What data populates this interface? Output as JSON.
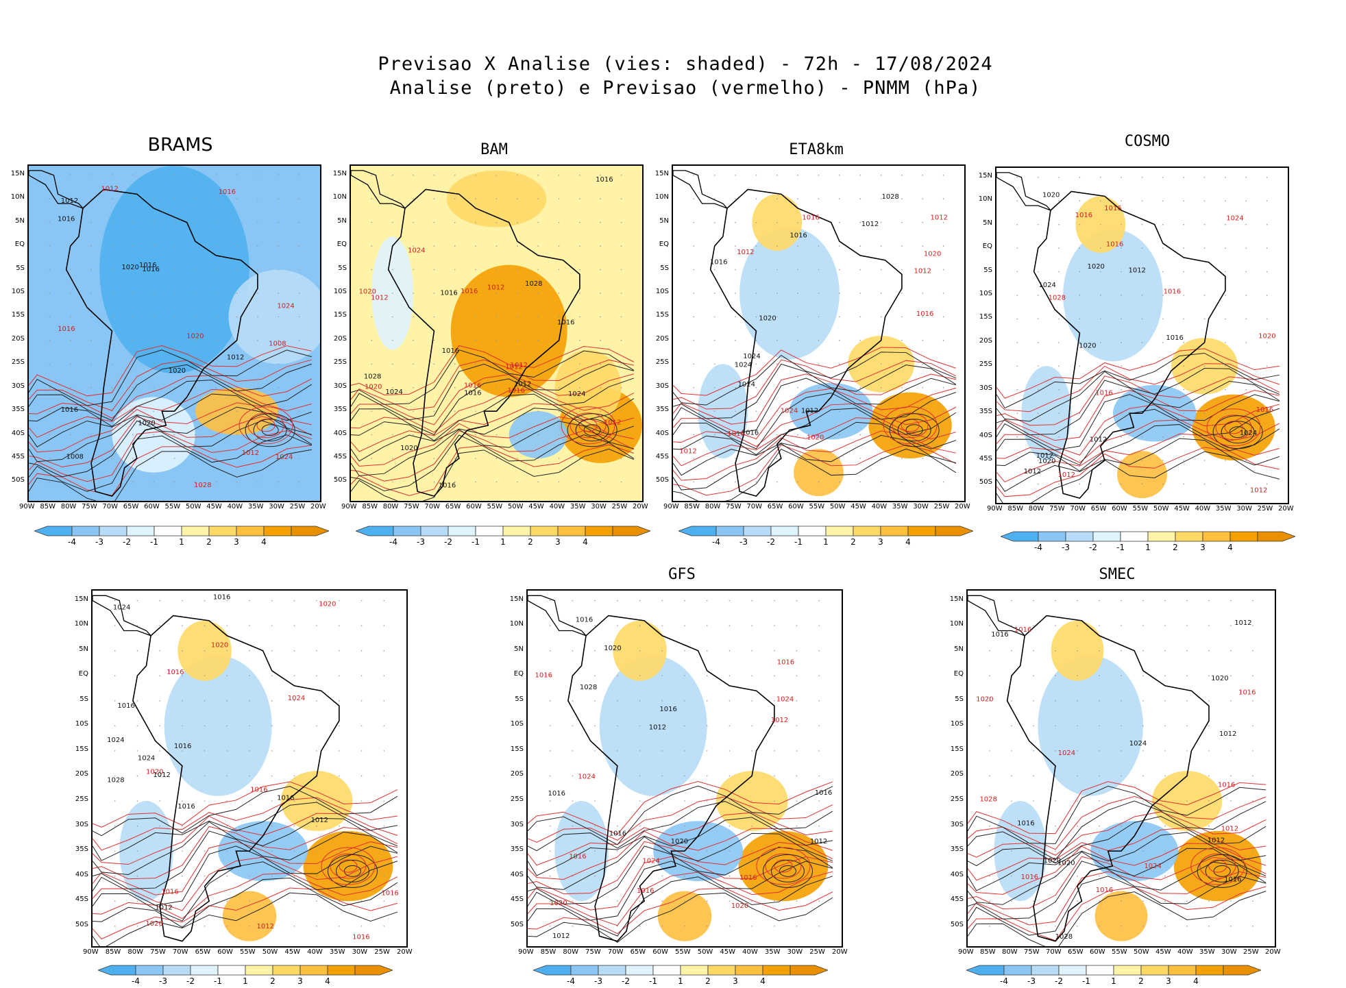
{
  "title": {
    "line1": "Previsao X Analise (vies: shaded) - 72h - 17/08/2024",
    "line2": "Analise (preto) e Previsao (vermelho) - PNMM (hPa)"
  },
  "lat_labels": [
    "15N",
    "10N",
    "5N",
    "EQ",
    "5S",
    "10S",
    "15S",
    "20S",
    "25S",
    "30S",
    "35S",
    "40S",
    "45S",
    "50S"
  ],
  "lon_labels": [
    "90W",
    "85W",
    "80W",
    "75W",
    "70W",
    "65W",
    "60W",
    "55W",
    "50W",
    "45W",
    "40W",
    "35W",
    "30W",
    "25W",
    "20W"
  ],
  "colorbar": {
    "labels": [
      "-4",
      "-3",
      "-2",
      "-1",
      "1",
      "2",
      "3",
      "4"
    ],
    "colors": [
      "#4fb0f0",
      "#8ac6f5",
      "#b7dcf7",
      "#dff3ff",
      "#ffffff",
      "#fff3a8",
      "#ffd966",
      "#ffbf3f",
      "#f4a000",
      "#e89000"
    ]
  },
  "panels": [
    {
      "name": "BRAMS",
      "bias": "negative",
      "contours": [
        "1012",
        "1008",
        "1008",
        "1012",
        "1016",
        "1012",
        "1016",
        "1016",
        "1020",
        "1028",
        "1016",
        "1016",
        "1012",
        "1024",
        "1020",
        "1024",
        "1020",
        "1020",
        "1016"
      ]
    },
    {
      "name": "BAM",
      "bias": "positive",
      "contours": [
        "1012",
        "1012",
        "1016",
        "1016",
        "1016",
        "1016",
        "1016",
        "1012",
        "1016",
        "1012",
        "1020",
        "1020",
        "1024",
        "1016",
        "1024",
        "1012",
        "1028",
        "1020",
        "1016",
        "1024",
        "1028",
        "1012",
        "1016"
      ]
    },
    {
      "name": "ETA8km",
      "bias": "mixed",
      "contours": [
        "1012",
        "1012",
        "1012",
        "1012",
        "1016",
        "1012",
        "1016",
        "1016",
        "1020",
        "1024",
        "1024",
        "1020",
        "1016",
        "1016",
        "1024",
        "1012",
        "1028",
        "1020",
        "1024",
        "1016"
      ]
    },
    {
      "name": "COSMO",
      "bias": "mixed",
      "contours": [
        "1012",
        "1016",
        "1012",
        "1012",
        "1020",
        "1016",
        "1012",
        "1016",
        "1020",
        "1016",
        "1020",
        "1024",
        "1012",
        "1016",
        "1016",
        "1020",
        "1024",
        "1012",
        "1024",
        "1028",
        "1020",
        "1016"
      ]
    },
    {
      "name": "",
      "bias": "mixed",
      "contours": [
        "1012",
        "1012",
        "1016",
        "1016",
        "1016",
        "1016",
        "1012",
        "1016",
        "1016",
        "1020",
        "1016",
        "1020",
        "1024",
        "1016",
        "1024",
        "1016",
        "1028",
        "1020",
        "1024",
        "1020",
        "1012",
        "1024",
        "1016"
      ]
    },
    {
      "name": "GFS",
      "bias": "mixed",
      "contours": [
        "1012",
        "1016",
        "1016",
        "1016",
        "1016",
        "1012",
        "1012",
        "1016",
        "1016",
        "1020",
        "1020",
        "1020",
        "1016",
        "1024",
        "1016",
        "1016",
        "1028",
        "1024",
        "1012",
        "1024",
        "1020",
        "1016"
      ]
    },
    {
      "name": "SMEC",
      "bias": "mixed",
      "contours": [
        "1012",
        "1012",
        "1012",
        "1016",
        "1016",
        "1016",
        "1016",
        "1020",
        "1020",
        "1016",
        "1024",
        "1024",
        "1016",
        "1016",
        "1020",
        "1028",
        "1028",
        "1024",
        "1012",
        "1016",
        "1020"
      ]
    }
  ]
}
